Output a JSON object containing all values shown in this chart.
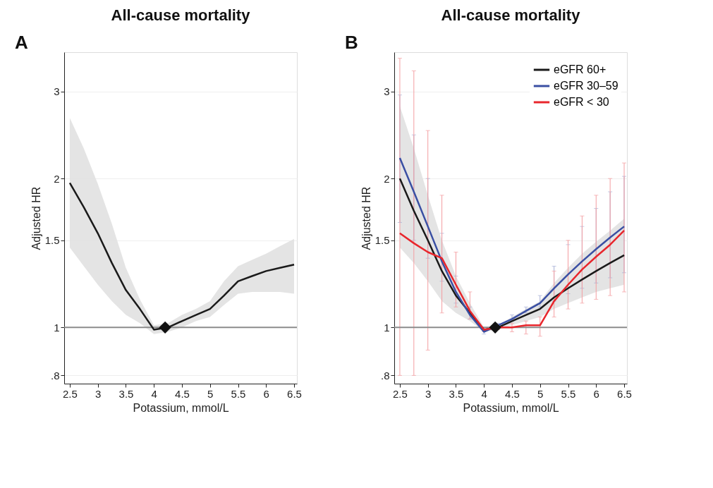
{
  "chart_data": [
    {
      "type": "line",
      "title": "All-cause mortality",
      "xlabel": "Potassium, mmol/L",
      "ylabel": "Adjusted HR",
      "annotations": [
        "A"
      ],
      "log": "y",
      "grid": "y",
      "x": [
        2.5,
        2.75,
        3,
        3.25,
        3.5,
        3.75,
        4,
        4.25,
        4.5,
        4.75,
        5,
        5.25,
        5.5,
        5.75,
        6,
        6.25,
        6.5
      ],
      "xlim": [
        2.4,
        6.55
      ],
      "xticks": [
        2.5,
        3,
        3.5,
        4,
        4.5,
        5,
        5.5,
        6,
        6.5
      ],
      "ylim": [
        0.77,
        3.6
      ],
      "yticks": [
        {
          "value": 0.8,
          "label": ".8"
        },
        1,
        1.5,
        2,
        3
      ],
      "ref_lines": [
        {
          "axis": "y",
          "value": 1,
          "color": "#8c8c8c"
        }
      ],
      "series": [
        {
          "color": "#1a1a1a",
          "values": [
            1.96,
            1.75,
            1.55,
            1.35,
            1.19,
            1.09,
            0.99,
            1.0,
            1.03,
            1.06,
            1.09,
            1.16,
            1.24,
            1.27,
            1.3,
            1.32,
            1.34
          ],
          "lower": [
            1.45,
            1.33,
            1.22,
            1.13,
            1.06,
            1.02,
            0.97,
            0.98,
            1.0,
            1.03,
            1.05,
            1.11,
            1.17,
            1.18,
            1.18,
            1.18,
            1.17
          ],
          "upper": [
            2.65,
            2.3,
            1.95,
            1.62,
            1.32,
            1.14,
            1.01,
            1.02,
            1.06,
            1.09,
            1.13,
            1.24,
            1.33,
            1.37,
            1.41,
            1.46,
            1.51
          ]
        },
        {
          "type": "scatter",
          "marker": "diamond",
          "color": "#111111",
          "x": [
            4.2
          ],
          "values": [
            1
          ]
        }
      ]
    },
    {
      "type": "line",
      "title": "All-cause mortality",
      "xlabel": "Potassium, mmol/L",
      "ylabel": "Adjusted HR",
      "annotations": [
        "B"
      ],
      "log": "y",
      "grid": "y",
      "legend": "top right",
      "x": [
        2.5,
        2.75,
        3,
        3.25,
        3.5,
        3.75,
        4,
        4.25,
        4.5,
        4.75,
        5,
        5.25,
        5.5,
        5.75,
        6,
        6.25,
        6.5
      ],
      "xlim": [
        2.4,
        6.55
      ],
      "xticks": [
        2.5,
        3,
        3.5,
        4,
        4.5,
        5,
        5.5,
        6,
        6.5
      ],
      "ylim": [
        0.77,
        3.6
      ],
      "yticks": [
        {
          "value": 0.8,
          "label": ".8"
        },
        1,
        1.5,
        2,
        3
      ],
      "ref_lines": [
        {
          "axis": "y",
          "value": 1,
          "color": "#8c8c8c"
        }
      ],
      "series": [
        {
          "name": "eGFR 60+",
          "color": "#1a1a1a",
          "values": [
            2.0,
            1.72,
            1.5,
            1.3,
            1.16,
            1.07,
            0.99,
            1.0,
            1.03,
            1.06,
            1.09,
            1.15,
            1.2,
            1.25,
            1.3,
            1.35,
            1.4
          ],
          "lower": [
            1.45,
            1.35,
            1.24,
            1.13,
            1.07,
            1.03,
            0.98,
            0.99,
            1.01,
            1.03,
            1.05,
            1.09,
            1.12,
            1.15,
            1.18,
            1.2,
            1.22
          ],
          "upper": [
            2.8,
            2.3,
            1.85,
            1.5,
            1.27,
            1.12,
            1.0,
            1.01,
            1.05,
            1.09,
            1.13,
            1.23,
            1.32,
            1.41,
            1.49,
            1.57,
            1.66
          ]
        },
        {
          "name": "eGFR 30–59",
          "color": "#3a4fa3",
          "values": [
            2.2,
            1.88,
            1.6,
            1.36,
            1.18,
            1.06,
            0.98,
            1.01,
            1.04,
            1.08,
            1.12,
            1.2,
            1.28,
            1.36,
            1.44,
            1.52,
            1.6
          ],
          "errors": [
            [
              1.63,
              2.95
            ],
            [
              1.5,
              2.45
            ],
            [
              1.38,
              2.0
            ],
            [
              1.24,
              1.55
            ],
            [
              1.12,
              1.27
            ],
            [
              1.04,
              1.1
            ],
            [
              0.97,
              0.99
            ],
            [
              1.0,
              1.02
            ],
            [
              1.03,
              1.06
            ],
            [
              1.07,
              1.1
            ],
            [
              1.1,
              1.16
            ],
            [
              1.13,
              1.33
            ],
            [
              1.17,
              1.47
            ],
            [
              1.2,
              1.6
            ],
            [
              1.23,
              1.74
            ],
            [
              1.26,
              1.88
            ],
            [
              1.29,
              2.02
            ]
          ]
        },
        {
          "name": "eGFR < 30",
          "color": "#e8262c",
          "values": [
            1.55,
            1.48,
            1.42,
            1.38,
            1.22,
            1.08,
            0.99,
            1.0,
            1.0,
            1.01,
            1.01,
            1.13,
            1.22,
            1.31,
            1.39,
            1.47,
            1.57
          ],
          "errors": [
            [
              0.8,
              3.5
            ],
            [
              0.8,
              3.3
            ],
            [
              0.9,
              2.5
            ],
            [
              1.07,
              1.85
            ],
            [
              1.1,
              1.42
            ],
            [
              1.04,
              1.18
            ],
            [
              0.98,
              1.0
            ],
            [
              0.99,
              1.01
            ],
            [
              0.98,
              1.02
            ],
            [
              0.97,
              1.03
            ],
            [
              0.96,
              1.05
            ],
            [
              1.05,
              1.3
            ],
            [
              1.09,
              1.5
            ],
            [
              1.12,
              1.68
            ],
            [
              1.14,
              1.85
            ],
            [
              1.16,
              2.0
            ],
            [
              1.18,
              2.15
            ]
          ]
        },
        {
          "type": "scatter",
          "marker": "diamond",
          "color": "#111111",
          "x": [
            4.2
          ],
          "values": [
            1
          ]
        }
      ]
    }
  ]
}
